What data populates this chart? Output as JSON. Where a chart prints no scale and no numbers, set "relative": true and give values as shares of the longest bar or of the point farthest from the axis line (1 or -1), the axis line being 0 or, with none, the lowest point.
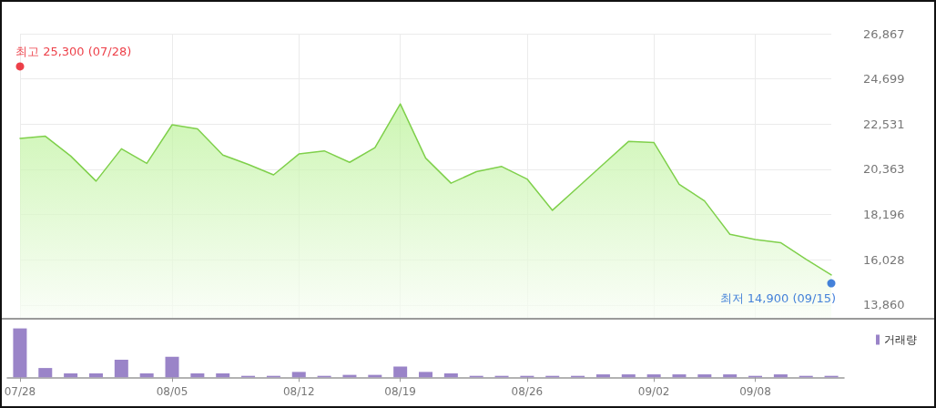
{
  "chart_data": [
    {
      "type": "area",
      "categories": [
        null,
        null,
        null,
        null,
        null,
        null,
        null,
        null,
        null,
        null,
        null,
        null,
        null,
        null,
        null,
        null,
        null,
        null,
        null,
        null,
        null,
        null,
        null,
        null,
        null,
        null,
        null,
        null,
        null,
        null,
        null,
        null,
        null
      ],
      "series": [
        {
          "color": "#7fd04b",
          "values": [
            21850,
            21950,
            21000,
            19800,
            21350,
            20650,
            22500,
            22300,
            21050,
            20600,
            20100,
            21100,
            21250,
            20700,
            21400,
            23500,
            20900,
            19700,
            20250,
            20500,
            19900,
            18400,
            19500,
            20600,
            21700,
            21650,
            19650,
            18850,
            17250,
            17000,
            16850,
            16050,
            15300
          ]
        },
        {
          "type": "scatter",
          "color": "#e8101c",
          "values": [
            25300,
            null,
            null,
            null,
            null,
            null,
            null,
            null,
            null,
            null,
            null,
            null,
            null,
            null,
            null,
            null,
            null,
            null,
            null,
            null,
            null,
            null,
            null,
            null,
            null,
            null,
            null,
            null,
            null,
            null,
            null,
            null,
            null
          ],
          "value_labels": [
            "최고 25,300 (07/28)",
            null,
            null,
            null,
            null,
            null,
            null,
            null,
            null,
            null,
            null,
            null,
            null,
            null,
            null,
            null,
            null,
            null,
            null,
            null,
            null,
            null,
            null,
            null,
            null,
            null,
            null,
            null,
            null,
            null,
            null,
            null,
            null
          ]
        },
        {
          "type": "scatter",
          "color": "#1762d2",
          "values": [
            null,
            null,
            null,
            null,
            null,
            null,
            null,
            null,
            null,
            null,
            null,
            null,
            null,
            null,
            null,
            null,
            null,
            null,
            null,
            null,
            null,
            null,
            null,
            null,
            null,
            null,
            null,
            null,
            null,
            null,
            null,
            null,
            14900
          ],
          "value_labels": [
            null,
            null,
            null,
            null,
            null,
            null,
            null,
            null,
            null,
            null,
            null,
            null,
            null,
            null,
            null,
            null,
            null,
            null,
            null,
            null,
            null,
            null,
            null,
            null,
            null,
            null,
            null,
            null,
            null,
            null,
            null,
            null,
            "최저 14,900 (09/15)"
          ]
        }
      ],
      "ylim": [
        13200,
        26867
      ],
      "yticks": [
        {
          "value": 13860,
          "label": "13,860"
        },
        {
          "value": 16028,
          "label": "16,028"
        },
        {
          "value": 18196,
          "label": "18,196"
        },
        {
          "value": 20363,
          "label": "20,363"
        },
        {
          "value": 22531,
          "label": "22,531"
        },
        {
          "value": 24699,
          "label": "24,699"
        },
        {
          "value": 26867,
          "label": "26,867"
        }
      ],
      "grid": true,
      "tick_labels": "y"
    },
    {
      "type": "bar",
      "relative": true,
      "categories": [
        "07/28",
        null,
        null,
        null,
        null,
        null,
        "08/05",
        null,
        null,
        null,
        null,
        "08/12",
        null,
        null,
        null,
        "08/19",
        null,
        null,
        null,
        null,
        "08/26",
        null,
        null,
        null,
        null,
        "09/02",
        null,
        null,
        null,
        "09/08",
        null,
        null,
        null
      ],
      "series": [
        {
          "name": "거래량",
          "color": "#9a84c8",
          "values": [
            1,
            0.19,
            0.08,
            0.08,
            0.36,
            0.08,
            0.42,
            0.08,
            0.08,
            0.03,
            0.03,
            0.11,
            0.03,
            0.05,
            0.05,
            0.22,
            0.11,
            0.08,
            0.03,
            0.03,
            0.03,
            0.03,
            0.03,
            0.06,
            0.06,
            0.06,
            0.06,
            0.06,
            0.06,
            0.03,
            0.06,
            0.03,
            0.03
          ]
        }
      ],
      "legend": "top right",
      "tick_labels": "x"
    }
  ]
}
